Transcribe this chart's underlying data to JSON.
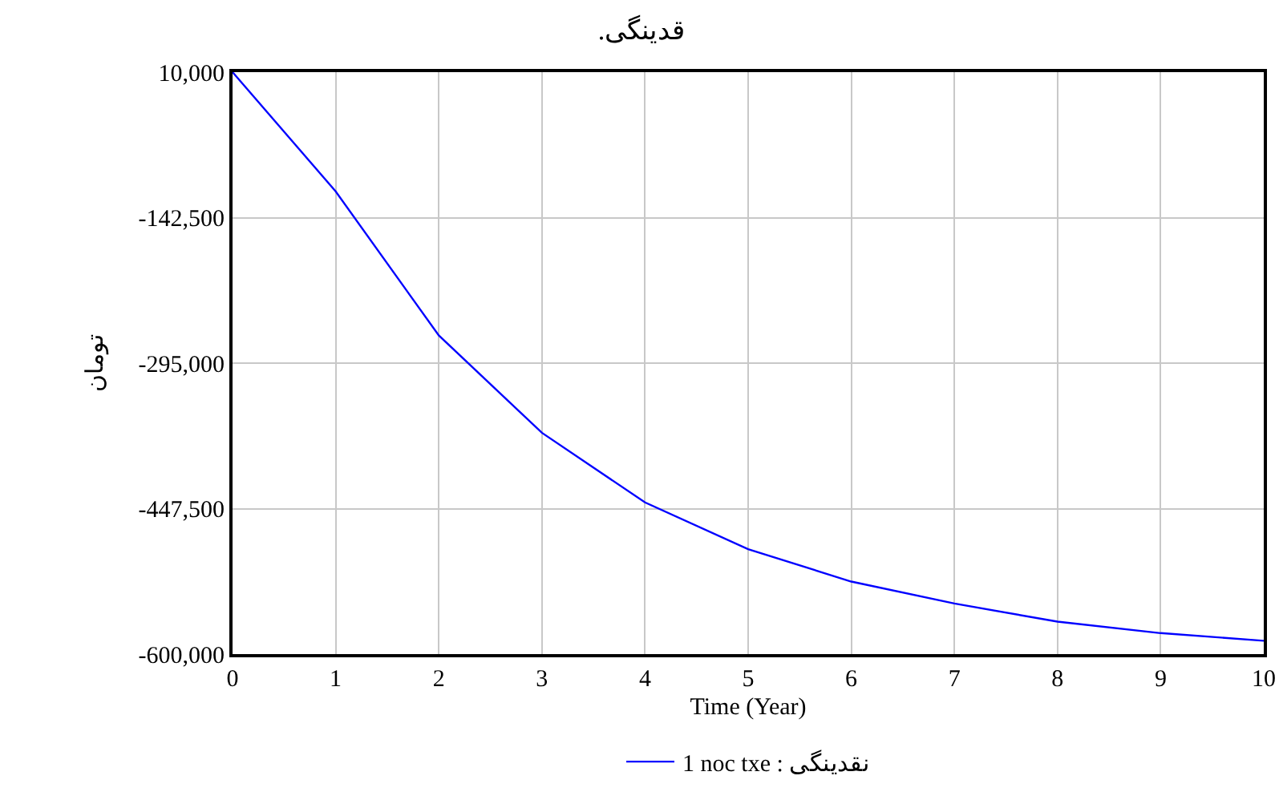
{
  "chart_data": {
    "type": "line",
    "title": ".قدینگی",
    "xlabel": "Time (Year)",
    "ylabel": "تومان",
    "x": [
      0,
      1,
      2,
      3,
      4,
      5,
      6,
      7,
      8,
      9,
      10
    ],
    "series": [
      {
        "name": "1 noc txe : نقدینگی",
        "color": "#0000ff",
        "values": [
          10000,
          -115000,
          -266000,
          -368000,
          -441000,
          -490000,
          -524000,
          -547000,
          -566000,
          -578000,
          -586000
        ]
      }
    ],
    "xlim": [
      0,
      10
    ],
    "xticks": [
      0,
      1,
      2,
      3,
      4,
      5,
      6,
      7,
      8,
      9,
      10
    ],
    "ylim": [
      -600000,
      10000
    ],
    "yticks": [
      {
        "value": 10000,
        "label": "10,000"
      },
      {
        "value": -142500,
        "label": "-142,500"
      },
      {
        "value": -295000,
        "label": "-295,000"
      },
      {
        "value": -447500,
        "label": "-447,500"
      },
      {
        "value": -600000,
        "label": "-600,000"
      }
    ],
    "grid": true,
    "legend": "bottom",
    "marker": "none",
    "line_style": "solid"
  }
}
